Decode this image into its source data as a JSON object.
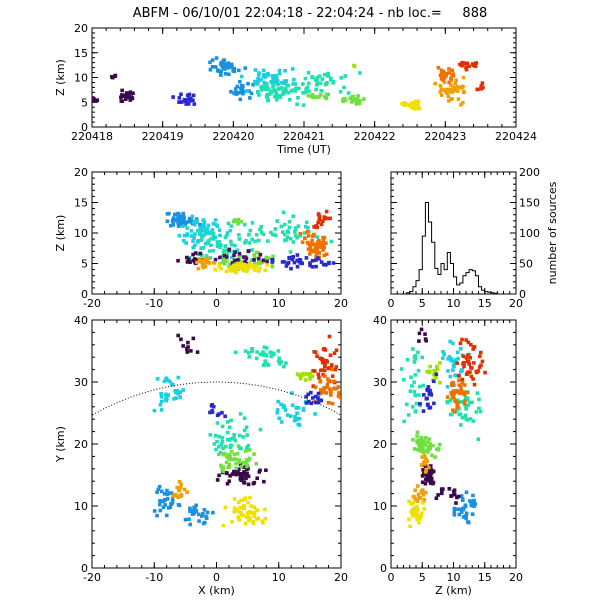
{
  "title": "ABFM - 06/10/01 22:04:18 - 22:04:24 - nb loc.=     888",
  "palette": [
    "#3a0a4a",
    "#4a1070",
    "#2a2acc",
    "#1a90e0",
    "#1ad0e0",
    "#20e0b0",
    "#70e040",
    "#a0e000",
    "#f0e000",
    "#f0a000",
    "#f07000",
    "#e03000"
  ],
  "chart_data": [
    {
      "id": "time_height",
      "type": "scatter",
      "xlabel": "Time (UT)",
      "ylabel": "Z (km)",
      "xlim": [
        220418,
        220424
      ],
      "ylim": [
        0,
        20
      ],
      "xticks": [
        "220418",
        "220419",
        "220420",
        "220421",
        "220422",
        "220423",
        "220424"
      ],
      "yticks": [
        "0",
        "5",
        "10",
        "15",
        "20"
      ],
      "clusters": [
        {
          "x": 220418.0,
          "y": 5.4,
          "sx": 0.08,
          "sy": 0.4,
          "n": 10,
          "color": 0
        },
        {
          "x": 220418.5,
          "y": 6.2,
          "sx": 0.12,
          "sy": 0.8,
          "n": 25,
          "color": 0
        },
        {
          "x": 220418.3,
          "y": 10.0,
          "sx": 0.05,
          "sy": 0.4,
          "n": 4,
          "color": 0
        },
        {
          "x": 220419.3,
          "y": 5.6,
          "sx": 0.12,
          "sy": 0.7,
          "n": 22,
          "color": 2
        },
        {
          "x": 220419.9,
          "y": 12.0,
          "sx": 0.15,
          "sy": 1.2,
          "n": 40,
          "color": 3
        },
        {
          "x": 220420.1,
          "y": 7.5,
          "sx": 0.12,
          "sy": 1.2,
          "n": 25,
          "color": 3
        },
        {
          "x": 220420.5,
          "y": 9.5,
          "sx": 0.25,
          "sy": 1.8,
          "n": 60,
          "color": 4
        },
        {
          "x": 220420.7,
          "y": 7.0,
          "sx": 0.3,
          "sy": 1.5,
          "n": 50,
          "color": 5
        },
        {
          "x": 220421.3,
          "y": 9.0,
          "sx": 0.3,
          "sy": 2.0,
          "n": 35,
          "color": 5
        },
        {
          "x": 220421.2,
          "y": 6.2,
          "sx": 0.1,
          "sy": 0.5,
          "n": 12,
          "color": 6
        },
        {
          "x": 220421.7,
          "y": 5.5,
          "sx": 0.12,
          "sy": 0.6,
          "n": 20,
          "color": 6
        },
        {
          "x": 220421.7,
          "y": 12.4,
          "sx": 0.02,
          "sy": 0.2,
          "n": 2,
          "color": 7
        },
        {
          "x": 220422.55,
          "y": 4.3,
          "sx": 0.1,
          "sy": 0.6,
          "n": 25,
          "color": 8
        },
        {
          "x": 220423.1,
          "y": 7.5,
          "sx": 0.15,
          "sy": 1.8,
          "n": 45,
          "color": 9
        },
        {
          "x": 220423.0,
          "y": 10.5,
          "sx": 0.1,
          "sy": 1.2,
          "n": 20,
          "color": 10
        },
        {
          "x": 220423.3,
          "y": 12.3,
          "sx": 0.1,
          "sy": 0.7,
          "n": 18,
          "color": 11
        },
        {
          "x": 220423.5,
          "y": 8.0,
          "sx": 0.05,
          "sy": 0.6,
          "n": 8,
          "color": 11
        }
      ]
    },
    {
      "id": "x_height",
      "type": "scatter",
      "xlabel": "",
      "ylabel": "Z (km)",
      "xlim": [
        -20,
        20
      ],
      "ylim": [
        0,
        20
      ],
      "xticks": [
        "-20",
        "-10",
        "0",
        "10",
        "20"
      ],
      "yticks": [
        "0",
        "5",
        "10",
        "15",
        "20"
      ],
      "clusters": [
        {
          "x": -6.0,
          "y": 12.0,
          "sx": 2.0,
          "sy": 0.8,
          "n": 45,
          "color": 3
        },
        {
          "x": -2.0,
          "y": 10.0,
          "sx": 3.0,
          "sy": 2.0,
          "n": 60,
          "color": 4
        },
        {
          "x": 2.0,
          "y": 8.0,
          "sx": 4.0,
          "sy": 2.5,
          "n": 60,
          "color": 5
        },
        {
          "x": 12.0,
          "y": 10.0,
          "sx": 4.0,
          "sy": 2.0,
          "n": 40,
          "color": 5
        },
        {
          "x": 3.0,
          "y": 12.0,
          "sx": 1.0,
          "sy": 0.5,
          "n": 8,
          "color": 6
        },
        {
          "x": 5.0,
          "y": 5.5,
          "sx": 3.0,
          "sy": 1.0,
          "n": 40,
          "color": 6
        },
        {
          "x": -4.0,
          "y": 6.0,
          "sx": 1.5,
          "sy": 0.8,
          "n": 15,
          "color": 0
        },
        {
          "x": 4.0,
          "y": 6.0,
          "sx": 3.0,
          "sy": 1.0,
          "n": 25,
          "color": 1
        },
        {
          "x": 13.0,
          "y": 5.5,
          "sx": 3.0,
          "sy": 0.8,
          "n": 30,
          "color": 2
        },
        {
          "x": 4.0,
          "y": 4.3,
          "sx": 2.5,
          "sy": 0.6,
          "n": 60,
          "color": 8
        },
        {
          "x": -2.0,
          "y": 5.0,
          "sx": 1.2,
          "sy": 1.0,
          "n": 20,
          "color": 9
        },
        {
          "x": 16.0,
          "y": 8.0,
          "sx": 1.5,
          "sy": 1.5,
          "n": 50,
          "color": 10
        },
        {
          "x": 17.0,
          "y": 12.0,
          "sx": 1.0,
          "sy": 1.0,
          "n": 20,
          "color": 11
        },
        {
          "x": 17.0,
          "y": 5.0,
          "sx": 1.5,
          "sy": 0.6,
          "n": 10,
          "color": 2
        }
      ]
    },
    {
      "id": "height_histogram",
      "type": "line",
      "xlabel": "",
      "ylabel": "number of sources",
      "xlim": [
        0,
        20
      ],
      "ylim": [
        0,
        200
      ],
      "xticks": [
        "0",
        "5",
        "10",
        "15",
        "20"
      ],
      "yticks": [
        "0",
        "50",
        "100",
        "150",
        "200"
      ],
      "bin_width": 0.5,
      "bin_start": 0,
      "values": [
        0,
        0,
        0,
        0,
        0,
        2,
        4,
        12,
        22,
        40,
        95,
        150,
        118,
        85,
        42,
        32,
        50,
        40,
        68,
        50,
        28,
        15,
        18,
        30,
        35,
        40,
        38,
        30,
        12,
        6,
        4,
        3,
        2,
        1,
        0,
        0,
        0,
        0,
        0,
        0
      ]
    },
    {
      "id": "plan_view",
      "type": "scatter",
      "xlabel": "X (km)",
      "ylabel": "Y (km)",
      "xlim": [
        -20,
        20
      ],
      "ylim": [
        0,
        40
      ],
      "xticks": [
        "-20",
        "-10",
        "0",
        "10",
        "20"
      ],
      "yticks": [
        "0",
        "10",
        "20",
        "30",
        "40"
      ],
      "range_arc": {
        "cx": 0,
        "cy": -10,
        "r": 40
      },
      "clusters": [
        {
          "x": -4.5,
          "y": 36.0,
          "sx": 1.2,
          "sy": 1.5,
          "n": 10,
          "color": 0
        },
        {
          "x": -8.0,
          "y": 11.0,
          "sx": 1.8,
          "sy": 2.0,
          "n": 30,
          "color": 3
        },
        {
          "x": -3.0,
          "y": 8.5,
          "sx": 1.5,
          "sy": 1.0,
          "n": 25,
          "color": 3
        },
        {
          "x": -6.0,
          "y": 12.0,
          "sx": 0.8,
          "sy": 1.5,
          "n": 15,
          "color": 9
        },
        {
          "x": 5.0,
          "y": 9.0,
          "sx": 2.5,
          "sy": 1.5,
          "n": 50,
          "color": 8
        },
        {
          "x": 4.0,
          "y": 15.0,
          "sx": 2.5,
          "sy": 1.2,
          "n": 50,
          "color": 0
        },
        {
          "x": 3.0,
          "y": 18.0,
          "sx": 2.0,
          "sy": 1.5,
          "n": 40,
          "color": 6
        },
        {
          "x": 2.0,
          "y": 22.0,
          "sx": 3.0,
          "sy": 2.5,
          "n": 40,
          "color": 5
        },
        {
          "x": -7.0,
          "y": 28.0,
          "sx": 2.0,
          "sy": 2.5,
          "n": 30,
          "color": 4
        },
        {
          "x": 8.0,
          "y": 34.0,
          "sx": 3.0,
          "sy": 1.5,
          "n": 35,
          "color": 5
        },
        {
          "x": 12.0,
          "y": 25.0,
          "sx": 3.0,
          "sy": 2.0,
          "n": 30,
          "color": 4
        },
        {
          "x": 17.0,
          "y": 33.0,
          "sx": 1.5,
          "sy": 2.5,
          "n": 40,
          "color": 11
        },
        {
          "x": 18.0,
          "y": 29.0,
          "sx": 1.5,
          "sy": 2.0,
          "n": 35,
          "color": 10
        },
        {
          "x": 14.0,
          "y": 31.0,
          "sx": 1.2,
          "sy": 0.8,
          "n": 15,
          "color": 7
        },
        {
          "x": 16.0,
          "y": 27.0,
          "sx": 1.5,
          "sy": 1.0,
          "n": 15,
          "color": 2
        },
        {
          "x": 0.0,
          "y": 25.0,
          "sx": 1.0,
          "sy": 1.0,
          "n": 10,
          "color": 2
        }
      ]
    },
    {
      "id": "z_y",
      "type": "scatter",
      "xlabel": "Z (km)",
      "ylabel": "",
      "xlim": [
        0,
        20
      ],
      "ylim": [
        0,
        40
      ],
      "xticks": [
        "0",
        "5",
        "10",
        "15",
        "20"
      ],
      "yticks": [
        "0",
        "10",
        "20",
        "30",
        "40"
      ],
      "clusters": [
        {
          "x": 5.0,
          "y": 37.0,
          "sx": 0.8,
          "sy": 1.0,
          "n": 6,
          "color": 0
        },
        {
          "x": 4.0,
          "y": 30.0,
          "sx": 1.5,
          "sy": 4.0,
          "n": 30,
          "color": 5
        },
        {
          "x": 7.0,
          "y": 32.0,
          "sx": 1.0,
          "sy": 1.5,
          "n": 15,
          "color": 7
        },
        {
          "x": 10.0,
          "y": 33.0,
          "sx": 1.5,
          "sy": 2.5,
          "n": 30,
          "color": 4
        },
        {
          "x": 12.0,
          "y": 25.0,
          "sx": 2.0,
          "sy": 3.0,
          "n": 40,
          "color": 5
        },
        {
          "x": 13.0,
          "y": 33.0,
          "sx": 1.5,
          "sy": 3.0,
          "n": 40,
          "color": 11
        },
        {
          "x": 10.5,
          "y": 28.0,
          "sx": 1.2,
          "sy": 2.0,
          "n": 35,
          "color": 10
        },
        {
          "x": 6.0,
          "y": 28.0,
          "sx": 1.0,
          "sy": 2.0,
          "n": 20,
          "color": 2
        },
        {
          "x": 5.0,
          "y": 20.0,
          "sx": 1.0,
          "sy": 1.5,
          "n": 35,
          "color": 6
        },
        {
          "x": 6.0,
          "y": 15.0,
          "sx": 0.8,
          "sy": 1.5,
          "n": 40,
          "color": 0
        },
        {
          "x": 5.5,
          "y": 17.5,
          "sx": 0.5,
          "sy": 1.5,
          "n": 10,
          "color": 9
        },
        {
          "x": 12.0,
          "y": 10.0,
          "sx": 1.5,
          "sy": 2.0,
          "n": 35,
          "color": 3
        },
        {
          "x": 9.0,
          "y": 12.0,
          "sx": 1.5,
          "sy": 1.5,
          "n": 15,
          "color": 0
        },
        {
          "x": 4.0,
          "y": 9.0,
          "sx": 1.0,
          "sy": 1.5,
          "n": 40,
          "color": 8
        },
        {
          "x": 5.0,
          "y": 12.0,
          "sx": 1.0,
          "sy": 1.0,
          "n": 15,
          "color": 9
        },
        {
          "x": 7.0,
          "y": 19.0,
          "sx": 1.0,
          "sy": 1.0,
          "n": 10,
          "color": 6
        }
      ]
    }
  ]
}
